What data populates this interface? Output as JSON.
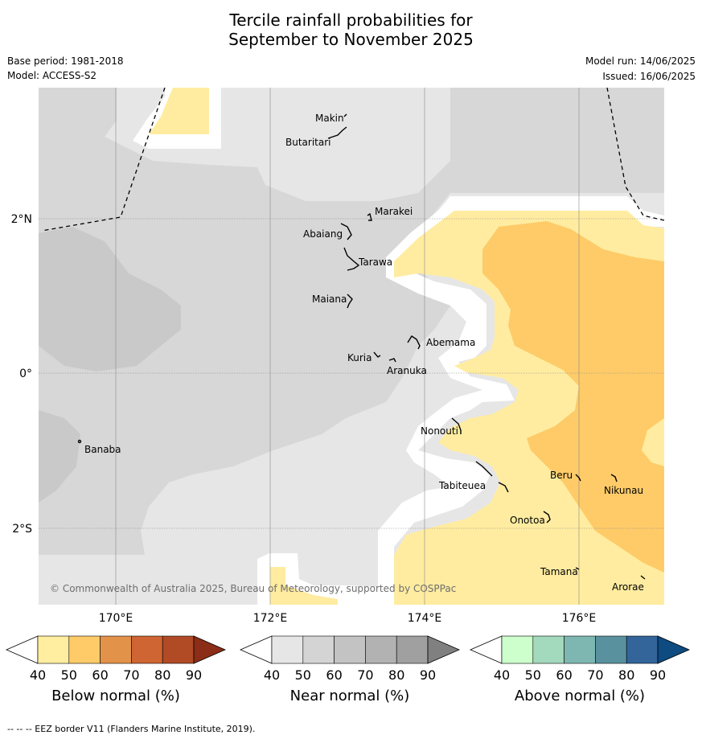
{
  "title_line1": "Tercile rainfall probabilities for",
  "title_line2": "September to November 2025",
  "base_period": "Base period: 1981-2018",
  "model": "Model: ACCESS-S2",
  "model_run": "Model run: 14/06/2025",
  "issued": "Issued: 16/06/2025",
  "copyright": "© Commonwealth of Australia 2025, Bureau of Meteorology, supported by COSPPac",
  "footer": "--  --  -- EEZ border V11 (Flanders Marine Institute, 2019).",
  "axes": {
    "lat_labels": [
      "2°N",
      "0°",
      "2°S"
    ],
    "lon_labels": [
      "170°E",
      "172°E",
      "174°E",
      "176°E"
    ]
  },
  "places": [
    {
      "name": "Makin"
    },
    {
      "name": "Butaritari"
    },
    {
      "name": "Marakei"
    },
    {
      "name": "Abaiang"
    },
    {
      "name": "Tarawa"
    },
    {
      "name": "Maiana"
    },
    {
      "name": "Abemama"
    },
    {
      "name": "Kuria"
    },
    {
      "name": "Aranuka"
    },
    {
      "name": "Banaba"
    },
    {
      "name": "Nonouti"
    },
    {
      "name": "Beru"
    },
    {
      "name": "Nikunau"
    },
    {
      "name": "Tabiteuea"
    },
    {
      "name": "Onotoa"
    },
    {
      "name": "Tamana"
    },
    {
      "name": "Arorae"
    }
  ],
  "colorbars": [
    {
      "label": "Below normal (%)",
      "ticks": [
        "40",
        "50",
        "60",
        "70",
        "80",
        "90"
      ],
      "colors": [
        "#ffeda0",
        "#fecb68",
        "#e3924a",
        "#cf6533",
        "#b04b25",
        "#8c2d17"
      ]
    },
    {
      "label": "Near normal (%)",
      "ticks": [
        "40",
        "50",
        "60",
        "70",
        "80",
        "90"
      ],
      "colors": [
        "#e6e6e6",
        "#d4d4d4",
        "#c3c3c3",
        "#b2b2b2",
        "#a0a0a0",
        "#808080"
      ]
    },
    {
      "label": "Above normal (%)",
      "ticks": [
        "40",
        "50",
        "60",
        "70",
        "80",
        "90"
      ],
      "colors": [
        "#ccffcc",
        "#a3d9bc",
        "#7eb7b2",
        "#5a919e",
        "#33649a",
        "#0d4b80"
      ]
    }
  ],
  "colors": {
    "near_40": "#e6e6e6",
    "near_50": "#d7d7d7",
    "near_60": "#c9c9c9",
    "below_40": "#ffeca0",
    "below_50": "#fecb68"
  }
}
